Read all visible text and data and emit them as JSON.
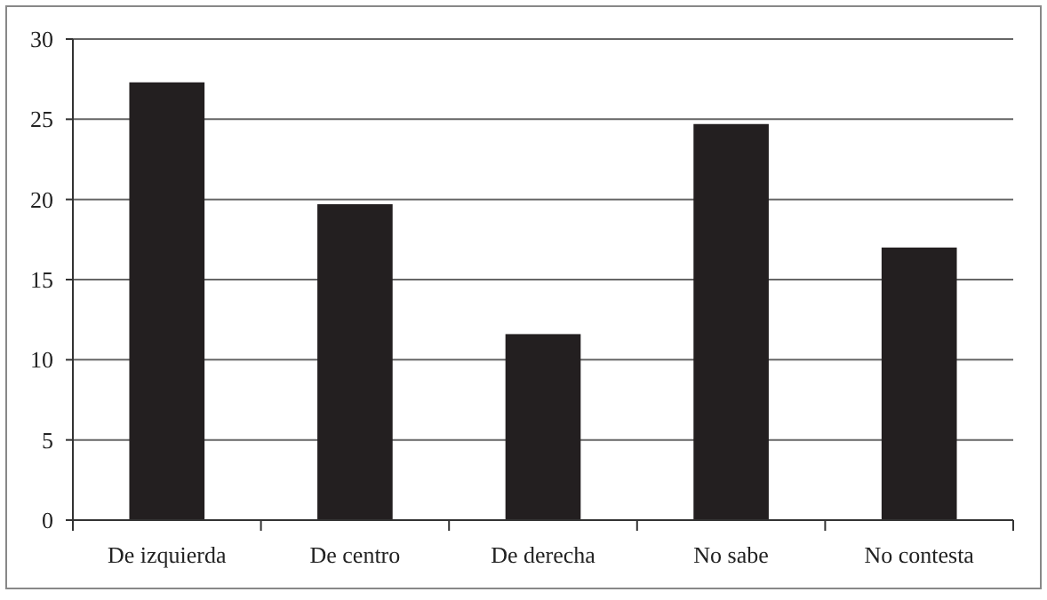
{
  "chart_data": {
    "type": "bar",
    "categories": [
      "De izquierda",
      "De centro",
      "De derecha",
      "No sabe",
      "No contesta"
    ],
    "values": [
      27.3,
      19.7,
      11.6,
      24.7,
      17.0
    ],
    "color": "#231f20",
    "ylim": [
      0,
      30
    ],
    "yticks": [
      0,
      5,
      10,
      15,
      20,
      25,
      30
    ],
    "grid": "y"
  }
}
